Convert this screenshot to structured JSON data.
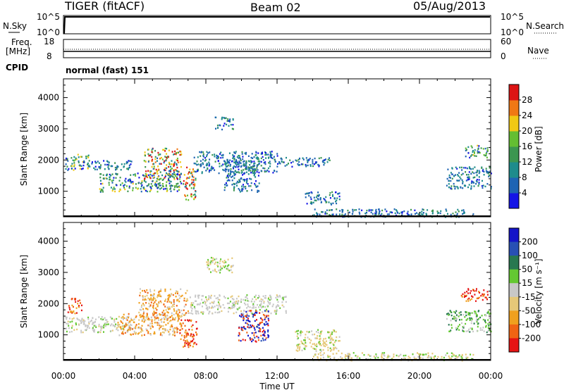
{
  "header": {
    "radar": "TIGER (fitACF)",
    "beam": "Beam 02",
    "date": "05/Aug/2013"
  },
  "status_panels": {
    "nsky": {
      "left_label": "N.Sky",
      "right_label": "N.Search",
      "left_ticks": [
        "10^5",
        "10^0"
      ],
      "right_ticks": [
        "10^5",
        "10^0"
      ]
    },
    "freq": {
      "left_label": "Freq.",
      "left_unit": "[MHz]",
      "right_label": "Nave",
      "left_ticks": [
        "18",
        "8"
      ],
      "right_ticks": [
        "60",
        "0"
      ]
    },
    "cpid": {
      "label": "CPID",
      "value": "normal (fast) 151"
    }
  },
  "colors": {
    "power_scale": [
      "#1414e6",
      "#1e64b4",
      "#1e8c8c",
      "#3c9650",
      "#64be32",
      "#f0c814",
      "#f07814",
      "#dc1414"
    ],
    "velocity_scale": [
      "#1414c8",
      "#2850b4",
      "#287850",
      "#64c832",
      "#c8c8c8",
      "#e6c878",
      "#f0a01e",
      "#f06414",
      "#e61414"
    ]
  },
  "chart_data": [
    {
      "type": "heatmap",
      "name": "power",
      "xlabel": "",
      "ylabel": "Slant Range [km]",
      "xlim": [
        0,
        24
      ],
      "ylim": [
        180,
        4600
      ],
      "x_ticks": [
        "00:00",
        "04:00",
        "08:00",
        "12:00",
        "16:00",
        "20:00",
        "00:00"
      ],
      "y_ticks": [
        1000,
        2000,
        3000,
        4000
      ],
      "colorbar": {
        "label": "Power [dB]",
        "ticks": [
          4,
          8,
          12,
          16,
          20,
          24,
          28
        ]
      },
      "echo_regions": [
        {
          "t": [
            0.1,
            1.5
          ],
          "r": [
            1700,
            2200
          ],
          "level": "mid"
        },
        {
          "t": [
            1.5,
            3.8
          ],
          "r": [
            1700,
            2000
          ],
          "level": "low"
        },
        {
          "t": [
            2.0,
            6.6
          ],
          "r": [
            1000,
            1600
          ],
          "level": "mid"
        },
        {
          "t": [
            4.5,
            6.6
          ],
          "r": [
            1400,
            2400
          ],
          "level": "high"
        },
        {
          "t": [
            6.7,
            7.4
          ],
          "r": [
            700,
            1800
          ],
          "level": "high"
        },
        {
          "t": [
            7.3,
            12.0
          ],
          "r": [
            1600,
            2300
          ],
          "level": "low"
        },
        {
          "t": [
            9.0,
            11.0
          ],
          "r": [
            1000,
            2000
          ],
          "level": "low"
        },
        {
          "t": [
            12.0,
            15.0
          ],
          "r": [
            1800,
            2100
          ],
          "level": "low"
        },
        {
          "t": [
            13.5,
            15.5
          ],
          "r": [
            600,
            1000
          ],
          "level": "low"
        },
        {
          "t": [
            14.0,
            23.0
          ],
          "r": [
            200,
            450
          ],
          "level": "low"
        },
        {
          "t": [
            21.5,
            24.0
          ],
          "r": [
            1100,
            1800
          ],
          "level": "low"
        },
        {
          "t": [
            22.5,
            23.8
          ],
          "r": [
            2100,
            2500
          ],
          "level": "mid"
        },
        {
          "t": [
            8.5,
            9.5
          ],
          "r": [
            3000,
            3400
          ],
          "level": "low"
        }
      ]
    },
    {
      "type": "heatmap",
      "name": "velocity",
      "xlabel": "Time UT",
      "ylabel": "Slant Range [km]",
      "xlim": [
        0,
        24
      ],
      "ylim": [
        180,
        4600
      ],
      "x_ticks": [
        "00:00",
        "04:00",
        "08:00",
        "12:00",
        "16:00",
        "20:00",
        "00:00"
      ],
      "y_ticks": [
        1000,
        2000,
        3000,
        4000
      ],
      "colorbar": {
        "label": "Velocity [m s⁻¹]",
        "ticks": [
          "200",
          "100",
          "50",
          "15",
          "-15",
          "-50",
          "-100",
          "-200"
        ]
      },
      "echo_regions": [
        {
          "t": [
            0.1,
            3.8
          ],
          "r": [
            1100,
            1600
          ],
          "level": "grey"
        },
        {
          "t": [
            0.2,
            1.0
          ],
          "r": [
            1700,
            2200
          ],
          "level": "neg"
        },
        {
          "t": [
            3.0,
            6.6
          ],
          "r": [
            1000,
            1700
          ],
          "level": "orange"
        },
        {
          "t": [
            4.2,
            7.0
          ],
          "r": [
            1500,
            2500
          ],
          "level": "orange"
        },
        {
          "t": [
            6.5,
            7.5
          ],
          "r": [
            600,
            1500
          ],
          "level": "red"
        },
        {
          "t": [
            7.0,
            12.5
          ],
          "r": [
            1700,
            2300
          ],
          "level": "grey"
        },
        {
          "t": [
            9.8,
            11.5
          ],
          "r": [
            800,
            1800
          ],
          "level": "blue"
        },
        {
          "t": [
            13.0,
            15.5
          ],
          "r": [
            500,
            1200
          ],
          "level": "tan"
        },
        {
          "t": [
            14.0,
            23.0
          ],
          "r": [
            200,
            450
          ],
          "level": "tan"
        },
        {
          "t": [
            21.5,
            24.0
          ],
          "r": [
            1100,
            1800
          ],
          "level": "green"
        },
        {
          "t": [
            22.3,
            23.8
          ],
          "r": [
            2100,
            2500
          ],
          "level": "red"
        },
        {
          "t": [
            8.0,
            9.5
          ],
          "r": [
            3000,
            3500
          ],
          "level": "tan"
        }
      ]
    }
  ]
}
